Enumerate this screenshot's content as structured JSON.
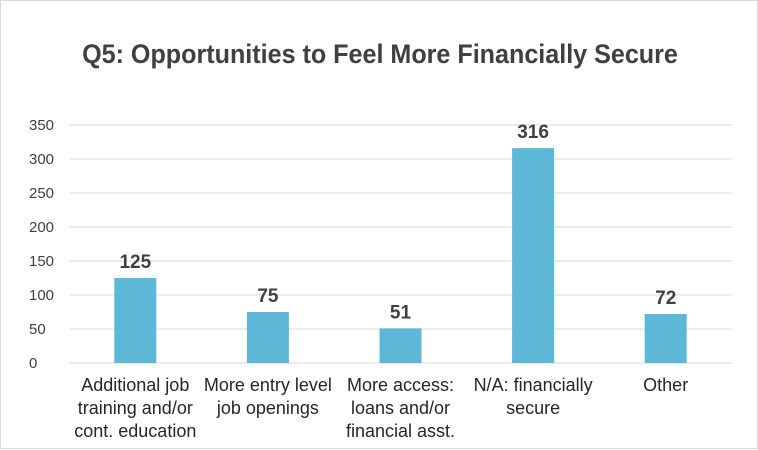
{
  "chart_data": {
    "type": "bar",
    "title": "Q5: Opportunities to Feel More Financially Secure",
    "categories": [
      [
        "Additional job",
        "training and/or",
        "cont. education"
      ],
      [
        "More entry level",
        "job openings"
      ],
      [
        "More access:",
        "loans and/or",
        "financial asst."
      ],
      [
        "N/A: financially",
        "secure"
      ],
      [
        "Other"
      ]
    ],
    "values": [
      125,
      75,
      51,
      316,
      72
    ],
    "ylim": [
      0,
      350
    ],
    "yticks": [
      0,
      50,
      100,
      150,
      200,
      250,
      300,
      350
    ],
    "grid": true,
    "legend": "none",
    "bar_color": "#5cb8d6",
    "grid_color": "#d9d9d9"
  }
}
